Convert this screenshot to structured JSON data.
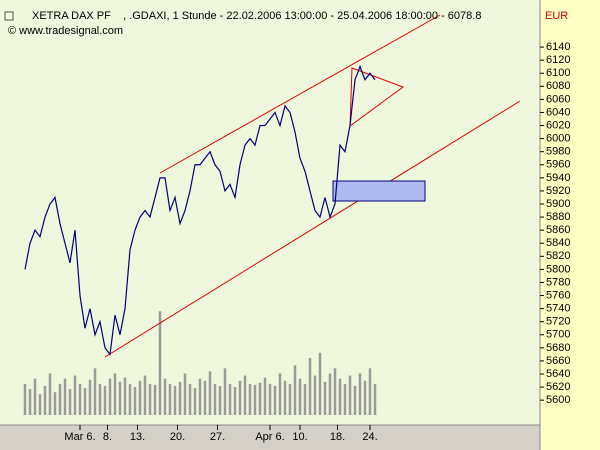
{
  "chart_data": {
    "type": "line",
    "title": "XETRA DAX PF    , .GDAXI, 1 Stunde - 22.02.2006 13:00:00 - 25.04.2006 18:00:00 - 6078.8",
    "source": "© www.tradesignal.com",
    "currency": "EUR",
    "x": [
      0,
      1,
      2,
      3,
      4,
      5,
      6,
      7,
      8,
      9,
      10,
      11,
      12,
      13,
      14,
      15,
      16,
      17,
      18,
      19,
      20,
      21,
      22,
      23,
      24,
      25,
      26,
      27,
      28,
      29,
      30,
      31,
      32,
      33,
      34,
      35,
      36,
      37,
      38,
      39,
      40,
      41,
      42,
      43,
      44,
      45,
      46,
      47,
      48,
      49,
      50,
      51,
      52,
      53,
      54,
      55,
      56,
      57,
      58,
      59,
      60,
      61,
      62,
      63,
      64,
      65,
      66,
      67,
      68,
      69,
      70
    ],
    "series": [
      {
        "color": "#000080",
        "values": [
          5800,
          5840,
          5860,
          5850,
          5880,
          5900,
          5910,
          5870,
          5840,
          5810,
          5860,
          5760,
          5710,
          5740,
          5700,
          5720,
          5680,
          5670,
          5730,
          5700,
          5740,
          5830,
          5860,
          5880,
          5890,
          5880,
          5910,
          5940,
          5940,
          5890,
          5910,
          5870,
          5890,
          5920,
          5960,
          5960,
          5970,
          5980,
          5960,
          5950,
          5920,
          5930,
          5910,
          5960,
          5990,
          6000,
          5990,
          6020,
          6020,
          6030,
          6040,
          6020,
          6050,
          6040,
          6010,
          5970,
          5950,
          5920,
          5890,
          5880,
          5910,
          5880,
          5900,
          5990,
          5980,
          6020,
          6090,
          6110,
          6090,
          6100,
          6090
        ]
      },
      {
        "type": "bar",
        "axis": "y2",
        "color": "#9a9a9a",
        "values": [
          30,
          25,
          35,
          20,
          28,
          40,
          22,
          30,
          35,
          25,
          38,
          30,
          26,
          34,
          45,
          30,
          28,
          35,
          40,
          32,
          36,
          30,
          27,
          33,
          38,
          30,
          29,
          100,
          35,
          30,
          28,
          32,
          40,
          30,
          26,
          35,
          33,
          42,
          30,
          28,
          45,
          30,
          27,
          33,
          38,
          30,
          29,
          31,
          36,
          30,
          28,
          40,
          33,
          30,
          48,
          35,
          30,
          55,
          38,
          60,
          32,
          40,
          45,
          35,
          30,
          38,
          28,
          40,
          33,
          45,
          30
        ]
      }
    ],
    "xlim": [
      0,
      103
    ],
    "xticks": [
      {
        "value": 11,
        "label": "Mar 6."
      },
      {
        "value": 16.5,
        "label": "8."
      },
      {
        "value": 22.5,
        "label": "13."
      },
      {
        "value": 30.5,
        "label": "20."
      },
      {
        "value": 38.5,
        "label": "27."
      },
      {
        "value": 49,
        "label": "Apr 6."
      },
      {
        "value": 55,
        "label": "10."
      },
      {
        "value": 62.5,
        "label": "18."
      },
      {
        "value": 69,
        "label": "24."
      }
    ],
    "ylim": [
      5562,
      6212
    ],
    "yticks": [
      5600,
      5620,
      5640,
      5660,
      5680,
      5700,
      5720,
      5740,
      5760,
      5780,
      5800,
      5820,
      5840,
      5860,
      5880,
      5900,
      5920,
      5940,
      5960,
      5980,
      6000,
      6020,
      6040,
      6060,
      6080,
      6100,
      6120,
      6140
    ],
    "y2lim": [
      0,
      400
    ]
  }
}
